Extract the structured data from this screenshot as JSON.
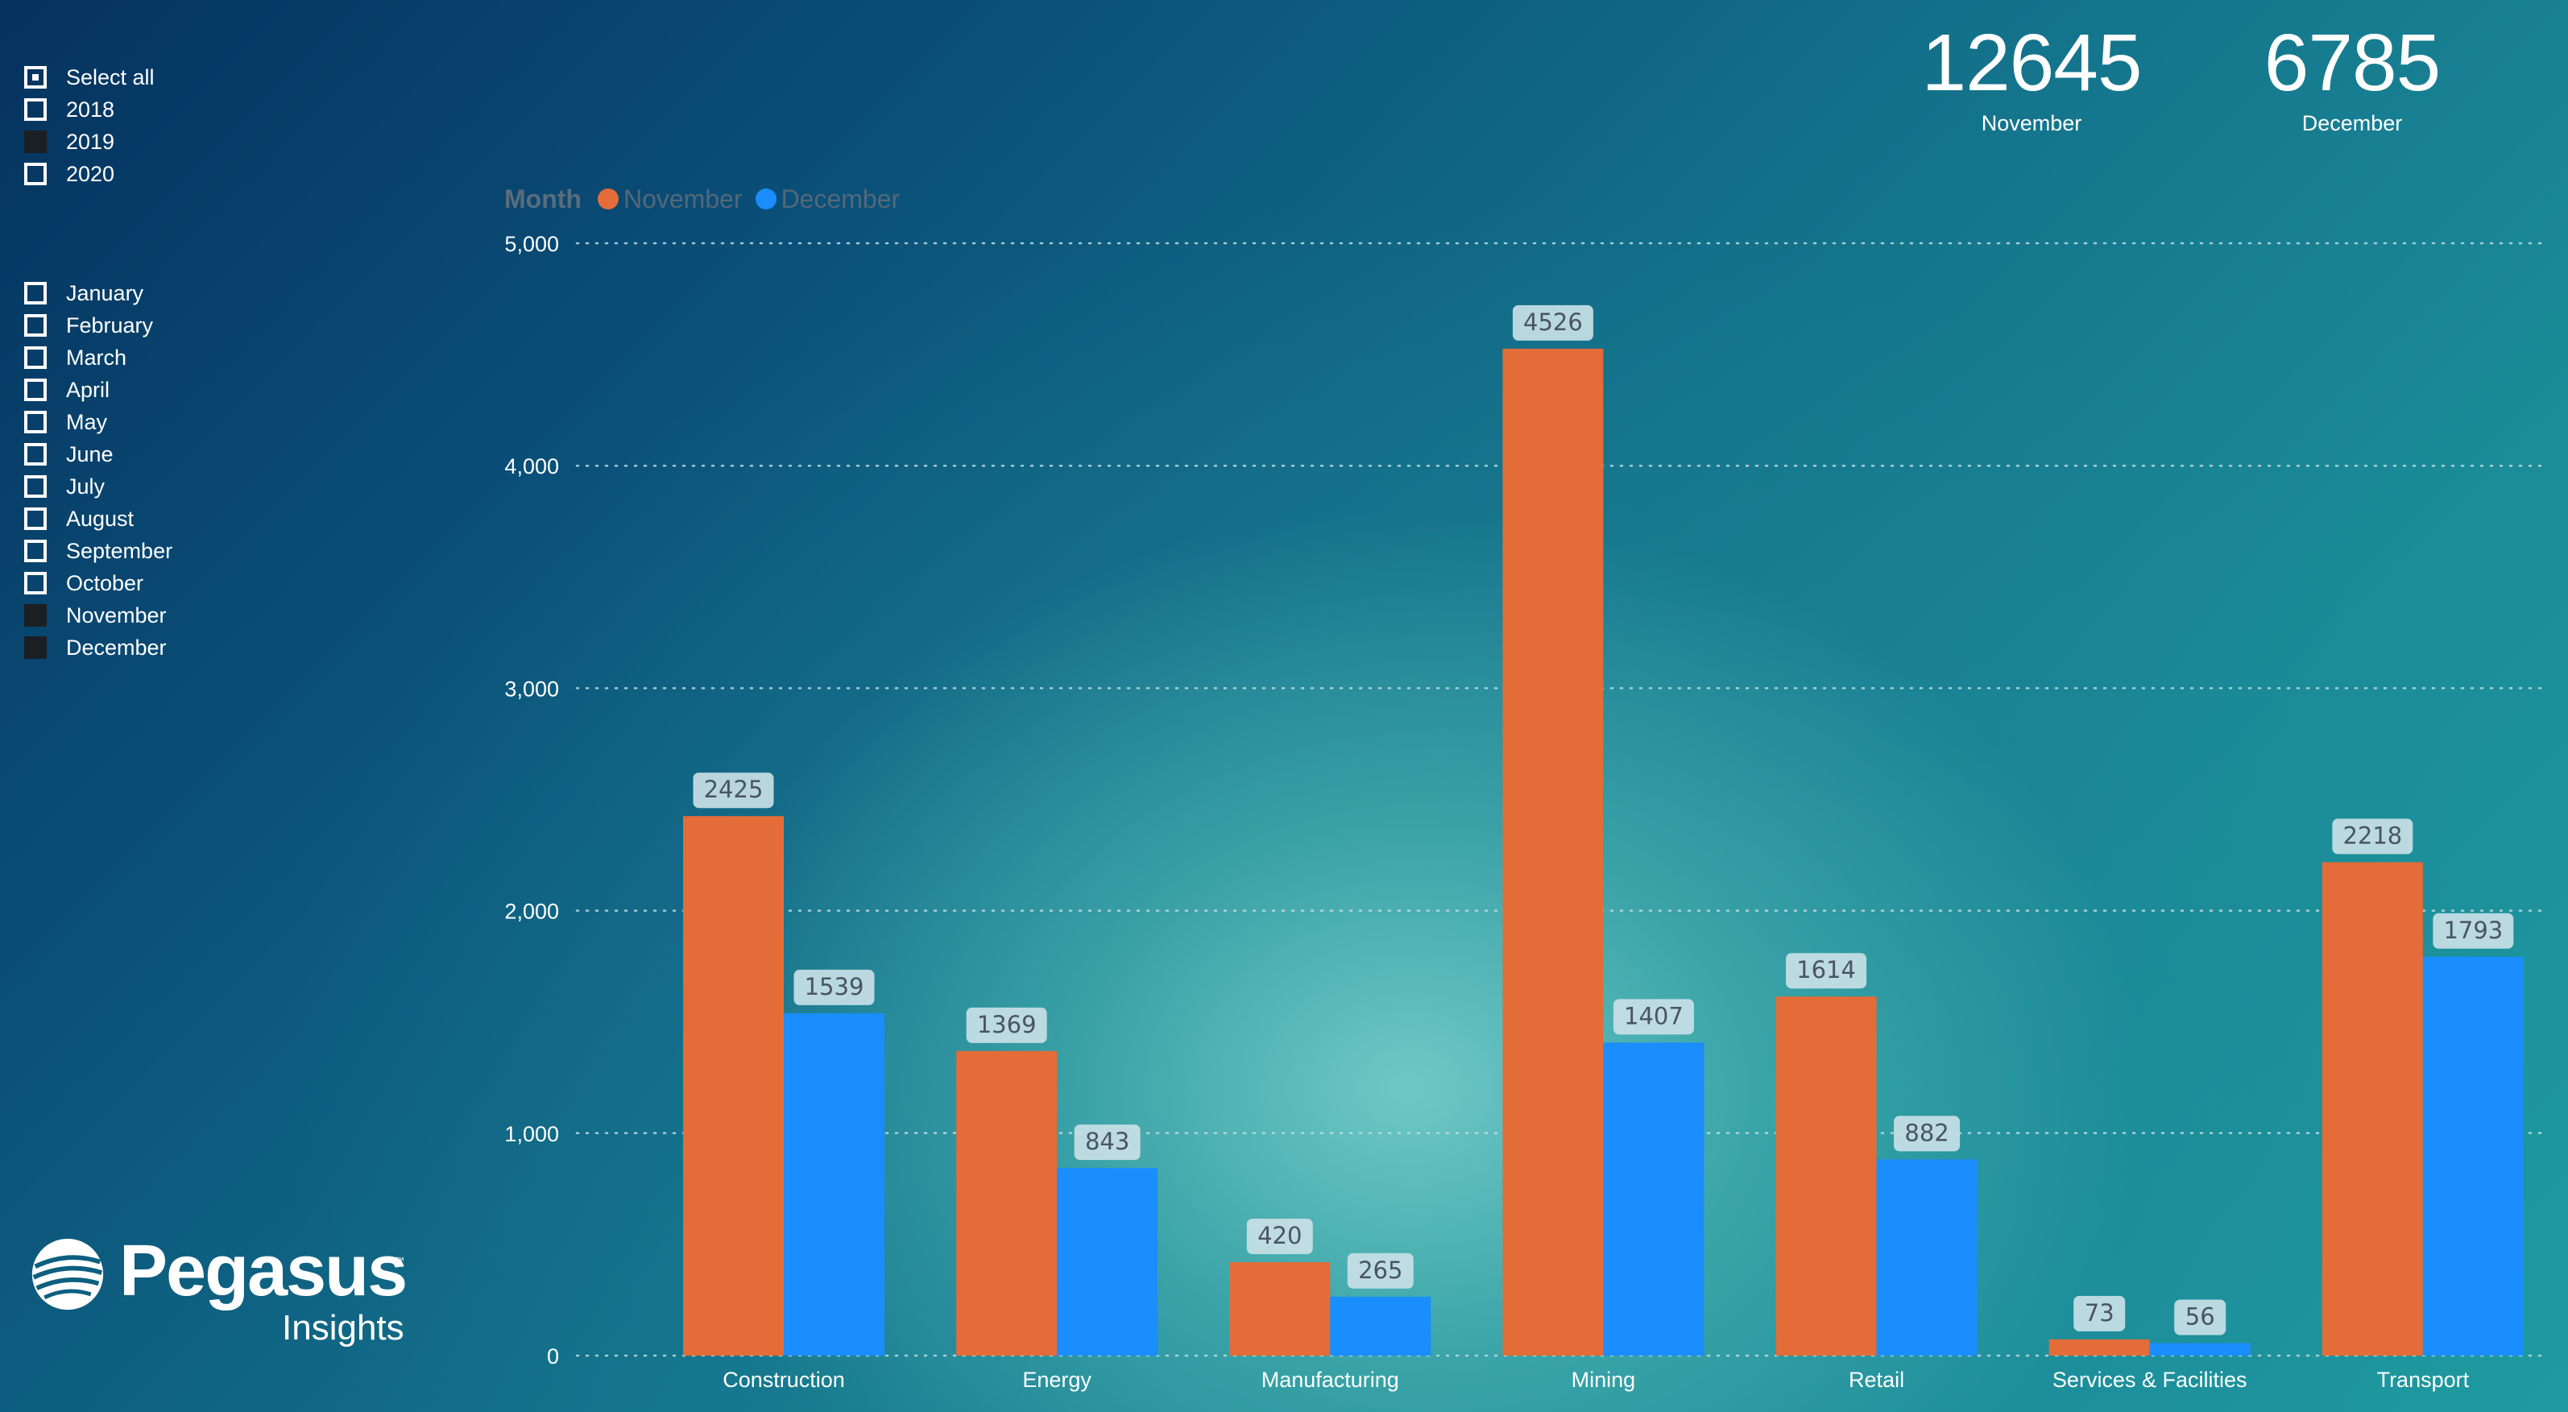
{
  "colors": {
    "november": "#e36c38",
    "december": "#1a8dff",
    "label_bg": "#c8dfe6",
    "label_text": "#4a5560",
    "grid": "#c4dde2",
    "axis_text": "#ffffff"
  },
  "year_slicer": {
    "items": [
      {
        "label": "Select all",
        "state": "partial"
      },
      {
        "label": "2018",
        "state": "unchecked"
      },
      {
        "label": "2019",
        "state": "checked"
      },
      {
        "label": "2020",
        "state": "unchecked"
      }
    ]
  },
  "month_slicer": {
    "items": [
      {
        "label": "January",
        "state": "unchecked"
      },
      {
        "label": "February",
        "state": "unchecked"
      },
      {
        "label": "March",
        "state": "unchecked"
      },
      {
        "label": "April",
        "state": "unchecked"
      },
      {
        "label": "May",
        "state": "unchecked"
      },
      {
        "label": "June",
        "state": "unchecked"
      },
      {
        "label": "July",
        "state": "unchecked"
      },
      {
        "label": "August",
        "state": "unchecked"
      },
      {
        "label": "September",
        "state": "unchecked"
      },
      {
        "label": "October",
        "state": "unchecked"
      },
      {
        "label": "November",
        "state": "checked"
      },
      {
        "label": "December",
        "state": "checked"
      }
    ]
  },
  "kpis": [
    {
      "value": "12645",
      "label": "November"
    },
    {
      "value": "6785",
      "label": "December"
    }
  ],
  "logo": {
    "name": "Pegasus",
    "tm": "™",
    "sub": "Insights",
    "icon": "pegasus-globe-icon"
  },
  "chart_data": {
    "type": "bar",
    "legend_title": "Month",
    "legend_position": "top-left",
    "grid": true,
    "ylim": [
      0,
      5000
    ],
    "yticks": [
      "0",
      "1,000",
      "2,000",
      "3,000",
      "4,000",
      "5,000"
    ],
    "categories": [
      "Construction",
      "Energy",
      "Manufacturing",
      "Mining",
      "Retail",
      "Services & Facilities",
      "Transport"
    ],
    "series": [
      {
        "name": "November",
        "values": [
          2425,
          1369,
          420,
          4526,
          1614,
          73,
          2218
        ]
      },
      {
        "name": "December",
        "values": [
          1539,
          843,
          265,
          1407,
          882,
          56,
          1793
        ]
      }
    ]
  }
}
